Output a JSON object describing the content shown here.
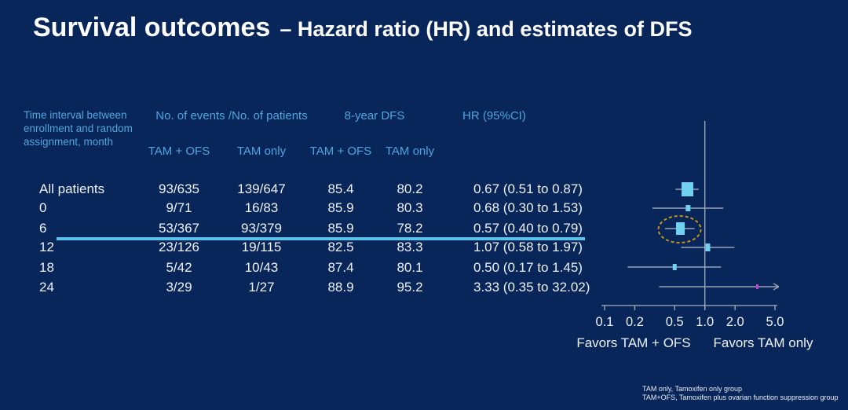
{
  "title": {
    "main": "Survival outcomes",
    "sub": "– Hazard ratio (HR) and estimates of DFS"
  },
  "table": {
    "row_header": "Time interval between enrollment and random assignment, month",
    "group_headers": {
      "events": "No. of events /No. of patients",
      "dfs": "8-year DFS",
      "hr": "HR (95%CI)"
    },
    "sub_headers": {
      "events_tam_ofs": "TAM + OFS",
      "events_tam_only": "TAM only",
      "dfs_tam_ofs": "TAM + OFS",
      "dfs_tam_only": "TAM only"
    },
    "rows": [
      {
        "label": "All patients",
        "events_tam_ofs": "93/635",
        "events_tam_only": "139/647",
        "dfs_tam_ofs": "85.4",
        "dfs_tam_only": "80.2",
        "hr_ci": "0.67 (0.51 to 0.87)"
      },
      {
        "label": "0",
        "events_tam_ofs": "9/71",
        "events_tam_only": "16/83",
        "dfs_tam_ofs": "85.9",
        "dfs_tam_only": "80.3",
        "hr_ci": "0.68 (0.30 to 1.53)"
      },
      {
        "label": "6",
        "events_tam_ofs": "53/367",
        "events_tam_only": "93/379",
        "dfs_tam_ofs": "85.9",
        "dfs_tam_only": "78.2",
        "hr_ci": "0.57 (0.40 to 0.79)"
      },
      {
        "label": "12",
        "events_tam_ofs": "23/126",
        "events_tam_only": "19/115",
        "dfs_tam_ofs": "82.5",
        "dfs_tam_only": "83.3",
        "hr_ci": "1.07 (0.58 to 1.97)"
      },
      {
        "label": "18",
        "events_tam_ofs": "5/42",
        "events_tam_only": "10/43",
        "dfs_tam_ofs": "87.4",
        "dfs_tam_only": "80.1",
        "hr_ci": "0.50 (0.17 to 1.45)"
      },
      {
        "label": "24",
        "events_tam_ofs": "3/29",
        "events_tam_only": "1/27",
        "dfs_tam_ofs": "88.9",
        "dfs_tam_only": "95.2",
        "hr_ci": "3.33 (0.35 to 32.02)"
      }
    ],
    "highlighted_row": "6"
  },
  "chart_data": {
    "type": "scatter",
    "subtype": "forest-plot",
    "x_scale": "log10",
    "xlim": [
      0.1,
      5.0
    ],
    "x_ticks": [
      0.1,
      0.2,
      0.5,
      1.0,
      2.0,
      5.0
    ],
    "reference_line": 1.0,
    "xlabel_left": "Favors TAM + OFS",
    "xlabel_right": "Favors TAM only",
    "points": [
      {
        "label": "All patients",
        "hr": 0.67,
        "ci_low": 0.51,
        "ci_high": 0.87,
        "circled": false,
        "arrow_right": false,
        "marker_color": "blue"
      },
      {
        "label": "0",
        "hr": 0.68,
        "ci_low": 0.3,
        "ci_high": 1.53,
        "circled": false,
        "arrow_right": false,
        "marker_color": "blue"
      },
      {
        "label": "6",
        "hr": 0.57,
        "ci_low": 0.4,
        "ci_high": 0.79,
        "circled": true,
        "arrow_right": false,
        "marker_color": "blue"
      },
      {
        "label": "12",
        "hr": 1.07,
        "ci_low": 0.58,
        "ci_high": 1.97,
        "circled": false,
        "arrow_right": false,
        "marker_color": "blue"
      },
      {
        "label": "18",
        "hr": 0.5,
        "ci_low": 0.17,
        "ci_high": 1.45,
        "circled": false,
        "arrow_right": false,
        "marker_color": "blue"
      },
      {
        "label": "24",
        "hr": 3.33,
        "ci_low": 0.35,
        "ci_high": 32.02,
        "circled": false,
        "arrow_right": true,
        "marker_color": "magenta"
      }
    ]
  },
  "footnotes": [
    "TAM only, Tamoxifen only group",
    "TAM+OFS, Tamoxifen plus ovarian function suppression group"
  ],
  "colors": {
    "background": "#08265A",
    "title_text": "#FDFEFF",
    "header_text": "#4FA6DC",
    "body_text": "#EEF2F7",
    "highlight_line": "#5BC2EC",
    "box": "#70D1F0",
    "ci_line": "#98A4B4",
    "axis_line": "#A6B0C2",
    "ellipse": "#C79417",
    "arrow_marker": "#C83FD2"
  }
}
